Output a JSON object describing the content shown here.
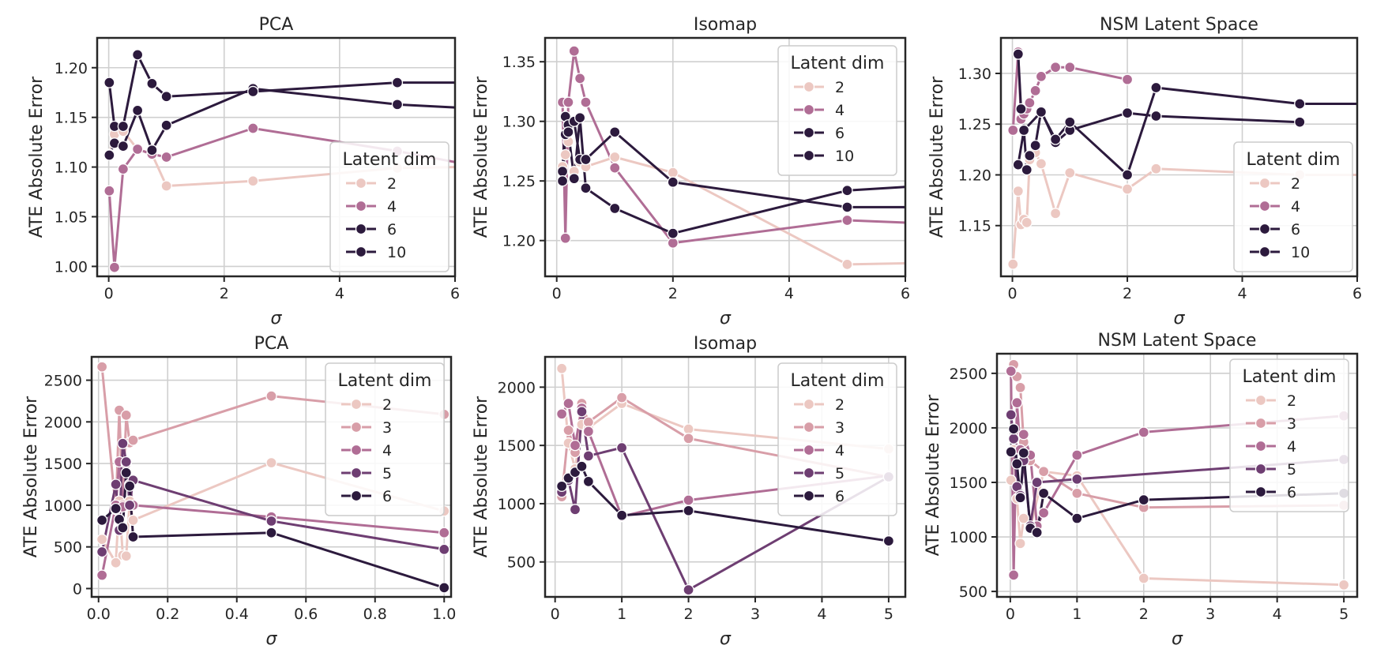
{
  "palette": {
    "2": "#ecc8c2",
    "3": "#d89ea8",
    "4": "#b06d95",
    "5": "#6e3e72",
    "6": "#2c1a3d",
    "10": "#2c1a3d",
    "grid": "#cfcfcf",
    "axis": "#262626"
  },
  "chart_data": [
    {
      "type": "line",
      "title": "PCA",
      "xlabel": "σ",
      "ylabel": "ATE Absolute Error",
      "xlim": [
        -0.2,
        6
      ],
      "ylim": [
        0.99,
        1.23
      ],
      "xticks": [
        0,
        2,
        4,
        6
      ],
      "xtick_labels": [
        "0",
        "2",
        "4",
        "6"
      ],
      "yticks": [
        1.0,
        1.05,
        1.1,
        1.15,
        1.2
      ],
      "ytick_labels": [
        "1.00",
        "1.05",
        "1.10",
        "1.15",
        "1.20"
      ],
      "grid": true,
      "legend_title": "Latent dim",
      "legend_loc": "lower-right",
      "series": [
        {
          "name": "2",
          "color_key": "2",
          "x": [
            0.01,
            0.1,
            0.25,
            0.5,
            0.75,
            1,
            2.5,
            5,
            6
          ],
          "y": [
            1.113,
            1.133,
            1.136,
            1.118,
            1.113,
            1.081,
            1.086,
            1.099,
            1.1
          ]
        },
        {
          "name": "4",
          "color_key": "4",
          "x": [
            0.01,
            0.1,
            0.25,
            0.5,
            0.75,
            1,
            2.5,
            5,
            6
          ],
          "y": [
            1.076,
            0.999,
            1.098,
            1.118,
            1.113,
            1.11,
            1.139,
            1.116,
            1.105
          ]
        },
        {
          "name": "6",
          "color_key": "6",
          "x": [
            0.01,
            0.1,
            0.25,
            0.5,
            0.75,
            1,
            2.5,
            5,
            6
          ],
          "y": [
            1.112,
            1.124,
            1.121,
            1.157,
            1.117,
            1.142,
            1.179,
            1.163,
            1.16
          ]
        },
        {
          "name": "10",
          "color_key": "10",
          "x": [
            0.01,
            0.1,
            0.25,
            0.5,
            0.75,
            1,
            2.5,
            5,
            6
          ],
          "y": [
            1.185,
            1.141,
            1.141,
            1.213,
            1.184,
            1.171,
            1.176,
            1.185,
            1.185
          ]
        }
      ]
    },
    {
      "type": "line",
      "title": "Isomap",
      "xlabel": "σ",
      "ylabel": "ATE Absolute Error",
      "xlim": [
        -0.2,
        6
      ],
      "ylim": [
        1.17,
        1.37
      ],
      "xticks": [
        0,
        2,
        4,
        6
      ],
      "xtick_labels": [
        "0",
        "2",
        "4",
        "6"
      ],
      "yticks": [
        1.2,
        1.25,
        1.3,
        1.35
      ],
      "ytick_labels": [
        "1.20",
        "1.25",
        "1.30",
        "1.35"
      ],
      "grid": true,
      "legend_title": "Latent dim",
      "legend_loc": "upper-right",
      "series": [
        {
          "name": "2",
          "color_key": "2",
          "x": [
            0.1,
            0.15,
            0.2,
            0.3,
            0.4,
            0.5,
            1,
            2,
            5,
            6
          ],
          "y": [
            1.262,
            1.272,
            1.283,
            1.258,
            1.266,
            1.262,
            1.27,
            1.257,
            1.18,
            1.181
          ]
        },
        {
          "name": "4",
          "color_key": "4",
          "x": [
            0.1,
            0.15,
            0.2,
            0.3,
            0.4,
            0.5,
            1,
            2,
            5,
            6
          ],
          "y": [
            1.316,
            1.202,
            1.316,
            1.359,
            1.336,
            1.316,
            1.261,
            1.198,
            1.217,
            1.215
          ]
        },
        {
          "name": "6",
          "color_key": "6",
          "x": [
            0.1,
            0.15,
            0.2,
            0.3,
            0.4,
            0.5,
            1,
            2,
            5,
            6
          ],
          "y": [
            1.258,
            1.304,
            1.297,
            1.3,
            1.268,
            1.268,
            1.291,
            1.249,
            1.228,
            1.228
          ]
        },
        {
          "name": "10",
          "color_key": "10",
          "x": [
            0.1,
            0.15,
            0.2,
            0.3,
            0.4,
            0.5,
            1,
            2,
            5,
            6
          ],
          "y": [
            1.25,
            1.289,
            1.291,
            1.252,
            1.303,
            1.244,
            1.227,
            1.206,
            1.242,
            1.245
          ]
        }
      ]
    },
    {
      "type": "line",
      "title": "NSM Latent Space",
      "xlabel": "σ",
      "ylabel": "ATE Absolute Error",
      "xlim": [
        -0.2,
        6
      ],
      "ylim": [
        1.1,
        1.335
      ],
      "xticks": [
        0,
        2,
        4,
        6
      ],
      "xtick_labels": [
        "0",
        "2",
        "4",
        "6"
      ],
      "yticks": [
        1.15,
        1.2,
        1.25,
        1.3
      ],
      "ytick_labels": [
        "1.15",
        "1.20",
        "1.25",
        "1.30"
      ],
      "grid": true,
      "legend_title": "Latent dim",
      "legend_loc": "lower-right",
      "series": [
        {
          "name": "2",
          "color_key": "2",
          "x": [
            0.01,
            0.1,
            0.15,
            0.2,
            0.25,
            0.3,
            0.4,
            0.5,
            0.75,
            1,
            2,
            2.5,
            5,
            6
          ],
          "y": [
            1.112,
            1.184,
            1.151,
            1.156,
            1.153,
            1.215,
            1.222,
            1.211,
            1.162,
            1.202,
            1.186,
            1.206,
            1.2,
            1.2
          ]
        },
        {
          "name": "4",
          "color_key": "4",
          "x": [
            0.01,
            0.1,
            0.15,
            0.2,
            0.25,
            0.3,
            0.4,
            0.5,
            0.75,
            1,
            2
          ],
          "y": [
            1.244,
            1.321,
            1.255,
            1.26,
            1.265,
            1.271,
            1.283,
            1.297,
            1.306,
            1.306,
            1.294
          ]
        },
        {
          "name": "6",
          "color_key": "6",
          "x": [
            0.1,
            0.2,
            0.25,
            0.3,
            0.4,
            0.5,
            0.75,
            1,
            2,
            2.5,
            5
          ],
          "y": [
            1.21,
            1.244,
            1.205,
            1.219,
            1.229,
            1.263,
            1.232,
            1.244,
            1.261,
            1.258,
            1.252
          ]
        },
        {
          "name": "10",
          "color_key": "10",
          "x": [
            0.1,
            0.15,
            0.2,
            0.5,
            0.75,
            1,
            2,
            2.5,
            5,
            6
          ],
          "y": [
            1.319,
            1.265,
            1.244,
            1.262,
            1.235,
            1.252,
            1.2,
            1.286,
            1.27,
            1.27
          ]
        }
      ]
    },
    {
      "type": "line",
      "title": "PCA",
      "xlabel": "σ",
      "ylabel": "ATE Absolute Error",
      "xlim": [
        -0.02,
        1.02
      ],
      "ylim": [
        -100,
        2780
      ],
      "xticks": [
        0,
        0.2,
        0.4,
        0.6,
        0.8,
        1.0
      ],
      "xtick_labels": [
        "0.0",
        "0.2",
        "0.4",
        "0.6",
        "0.8",
        "1.0"
      ],
      "yticks": [
        0,
        500,
        1000,
        1500,
        2000,
        2500
      ],
      "ytick_labels": [
        "0",
        "500",
        "1000",
        "1500",
        "2000",
        "2500"
      ],
      "grid": true,
      "legend_title": "Latent dim",
      "legend_loc": "upper-right",
      "series": [
        {
          "name": "2",
          "color_key": "2",
          "x": [
            0.01,
            0.05,
            0.06,
            0.07,
            0.08,
            0.09,
            0.1,
            0.5,
            1.0
          ],
          "y": [
            590,
            310,
            1050,
            400,
            390,
            1050,
            820,
            1510,
            930
          ]
        },
        {
          "name": "3",
          "color_key": "3",
          "x": [
            0.01,
            0.05,
            0.06,
            0.07,
            0.08,
            0.09,
            0.1,
            0.5,
            1.0
          ],
          "y": [
            2660,
            950,
            2140,
            1000,
            2080,
            1750,
            1780,
            2310,
            2090
          ]
        },
        {
          "name": "4",
          "color_key": "4",
          "x": [
            0.01,
            0.05,
            0.06,
            0.07,
            0.08,
            0.09,
            0.1,
            0.5,
            1.0
          ],
          "y": [
            160,
            1000,
            1520,
            980,
            1500,
            1250,
            1000,
            860,
            670
          ]
        },
        {
          "name": "5",
          "color_key": "5",
          "x": [
            0.01,
            0.05,
            0.06,
            0.07,
            0.08,
            0.09,
            0.1,
            0.5,
            1.0
          ],
          "y": [
            440,
            1250,
            700,
            1740,
            1520,
            1000,
            1300,
            810,
            470
          ]
        },
        {
          "name": "6",
          "color_key": "6",
          "x": [
            0.01,
            0.05,
            0.06,
            0.07,
            0.08,
            0.09,
            0.1,
            0.5,
            1.0
          ],
          "y": [
            820,
            960,
            830,
            730,
            1390,
            1230,
            620,
            670,
            10
          ]
        }
      ]
    },
    {
      "type": "line",
      "title": "Isomap",
      "xlabel": "σ",
      "ylabel": "ATE Absolute Error",
      "xlim": [
        -0.15,
        5.25
      ],
      "ylim": [
        200,
        2260
      ],
      "xticks": [
        0,
        1,
        2,
        3,
        4,
        5
      ],
      "xtick_labels": [
        "0",
        "1",
        "2",
        "3",
        "4",
        "5"
      ],
      "yticks": [
        500,
        1000,
        1500,
        2000
      ],
      "ytick_labels": [
        "500",
        "1000",
        "1500",
        "2000"
      ],
      "grid": true,
      "legend_title": "Latent dim",
      "legend_loc": "upper-right",
      "series": [
        {
          "name": "2",
          "color_key": "2",
          "x": [
            0.1,
            0.2,
            0.3,
            0.4,
            0.5,
            1,
            2,
            5
          ],
          "y": [
            2160,
            1520,
            1300,
            1680,
            1650,
            1860,
            1640,
            1470
          ]
        },
        {
          "name": "3",
          "color_key": "3",
          "x": [
            0.1,
            0.2,
            0.3,
            0.4,
            0.5,
            1,
            2,
            5
          ],
          "y": [
            1060,
            1630,
            1440,
            1860,
            1700,
            1910,
            1560,
            1230
          ]
        },
        {
          "name": "4",
          "color_key": "4",
          "x": [
            0.1,
            0.2,
            0.3,
            0.4,
            0.5,
            1,
            2,
            5
          ],
          "y": [
            1770,
            1860,
            1500,
            1820,
            1620,
            890,
            1030,
            1240
          ]
        },
        {
          "name": "5",
          "color_key": "5",
          "x": [
            0.1,
            0.2,
            0.3,
            0.4,
            0.5,
            1,
            2,
            5
          ],
          "y": [
            1100,
            1200,
            950,
            1790,
            1410,
            1480,
            260,
            1230
          ]
        },
        {
          "name": "6",
          "color_key": "6",
          "x": [
            0.1,
            0.2,
            0.3,
            0.4,
            0.5,
            1,
            2,
            5
          ],
          "y": [
            1150,
            1220,
            1270,
            1320,
            1190,
            900,
            940,
            680
          ]
        }
      ]
    },
    {
      "type": "line",
      "title": "NSM Latent Space",
      "xlabel": "σ",
      "ylabel": "ATE Absolute Error",
      "xlim": [
        -0.2,
        5.2
      ],
      "ylim": [
        450,
        2680
      ],
      "xticks": [
        0,
        1,
        2,
        3,
        4,
        5
      ],
      "xtick_labels": [
        "0",
        "1",
        "2",
        "3",
        "4",
        "5"
      ],
      "yticks": [
        500,
        1000,
        1500,
        2000,
        2500
      ],
      "ytick_labels": [
        "500",
        "1000",
        "1500",
        "2000",
        "2500"
      ],
      "grid": true,
      "legend_title": "Latent dim",
      "legend_loc": "upper-right",
      "series": [
        {
          "name": "2",
          "color_key": "2",
          "x": [
            0.01,
            0.05,
            0.1,
            0.15,
            0.2,
            0.3,
            0.5,
            1,
            2,
            5
          ],
          "y": [
            1520,
            1800,
            1350,
            940,
            1170,
            1080,
            1600,
            1560,
            620,
            560
          ]
        },
        {
          "name": "3",
          "color_key": "3",
          "x": [
            0.01,
            0.05,
            0.1,
            0.15,
            0.2,
            0.3,
            0.5,
            1,
            2,
            5
          ],
          "y": [
            2520,
            2580,
            2470,
            2370,
            1870,
            1700,
            1600,
            1400,
            1270,
            1290
          ]
        },
        {
          "name": "4",
          "color_key": "4",
          "x": [
            0.01,
            0.05,
            0.1,
            0.15,
            0.2,
            0.3,
            0.4,
            0.5,
            1,
            2,
            5
          ],
          "y": [
            2520,
            650,
            2230,
            1800,
            1940,
            1750,
            1100,
            1220,
            1750,
            1960,
            2110
          ]
        },
        {
          "name": "5",
          "color_key": "5",
          "x": [
            0.01,
            0.05,
            0.1,
            0.15,
            0.2,
            0.3,
            0.4,
            1,
            5
          ],
          "y": [
            2120,
            1900,
            1460,
            1380,
            1700,
            1100,
            1500,
            1530,
            1710
          ]
        },
        {
          "name": "6",
          "color_key": "6",
          "x": [
            0.01,
            0.05,
            0.1,
            0.15,
            0.2,
            0.3,
            0.4,
            0.5,
            1,
            2,
            5
          ],
          "y": [
            1780,
            1990,
            1670,
            1360,
            1770,
            1080,
            1040,
            1400,
            1170,
            1340,
            1400
          ]
        }
      ]
    }
  ]
}
